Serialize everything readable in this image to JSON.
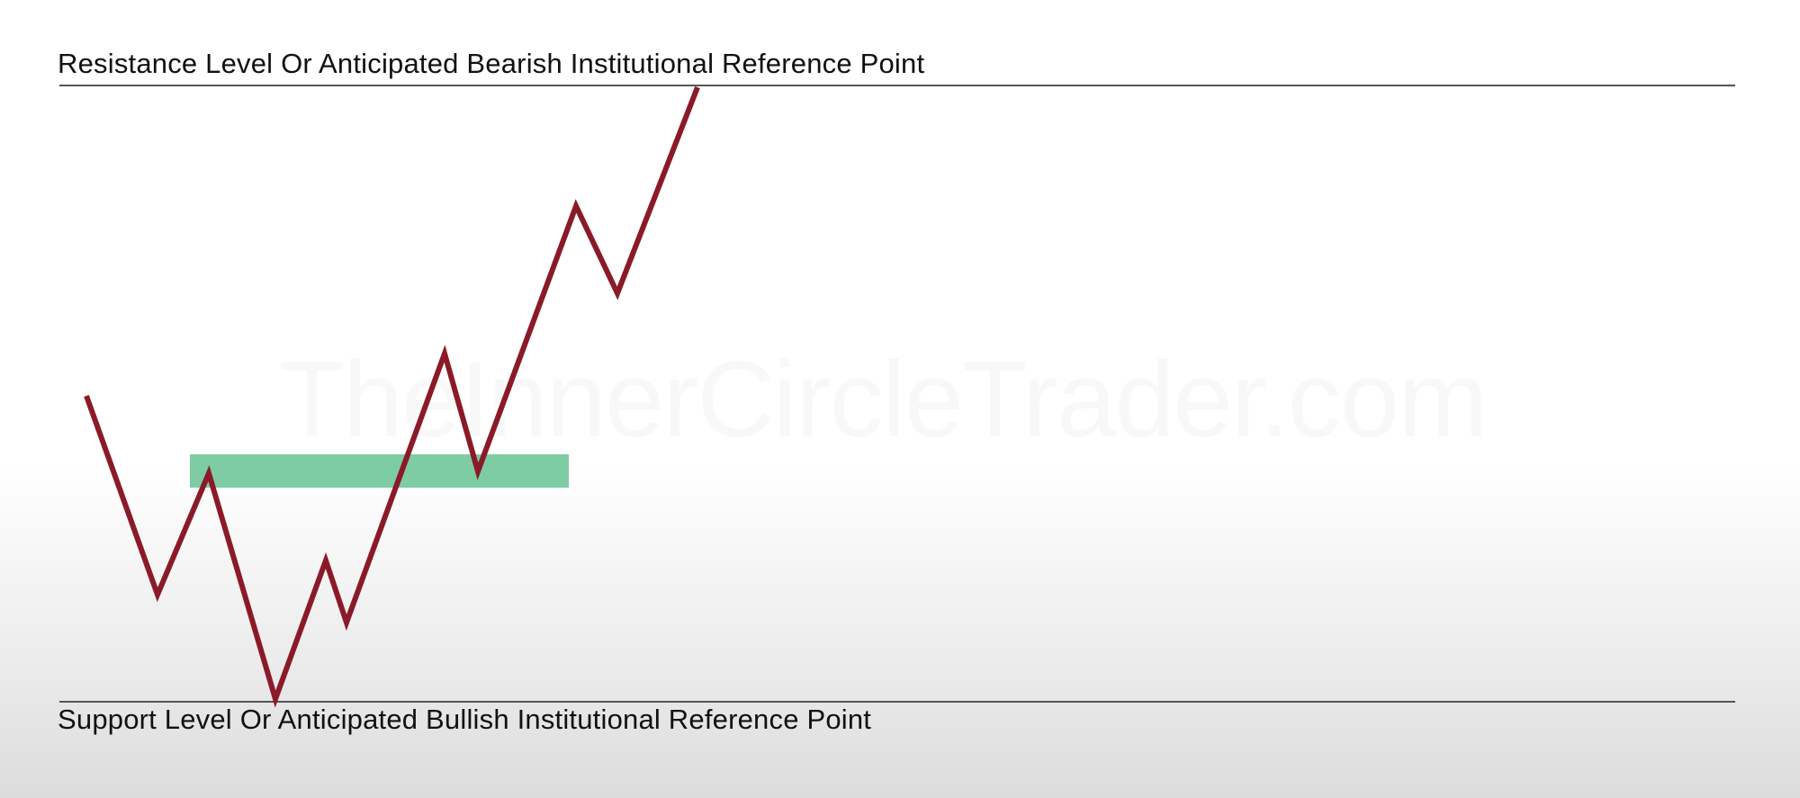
{
  "labels": {
    "resistance": "Resistance Level Or Anticipated Bearish Institutional Reference Point",
    "support": "Support Level Or Anticipated Bullish Institutional Reference Point"
  },
  "watermark": "TheInnerCircleTrader.com",
  "colors": {
    "price_path": "#8B1A28",
    "zone_fill": "#5cbf8c",
    "level_line": "#555555"
  }
}
